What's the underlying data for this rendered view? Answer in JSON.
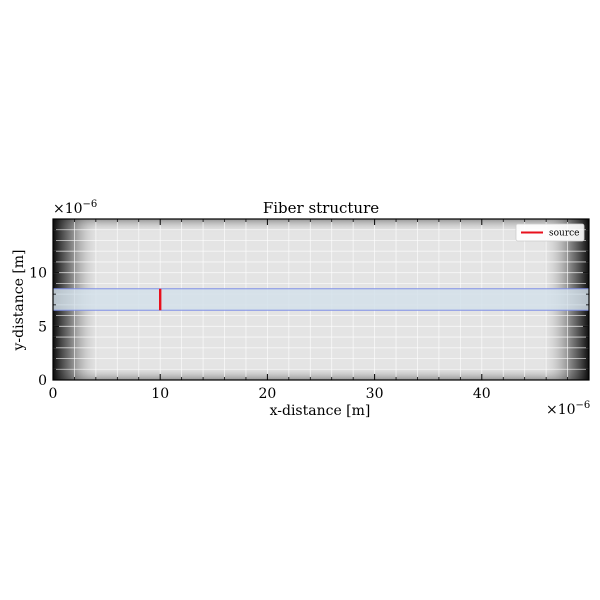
{
  "chart_data": {
    "type": "heatmap",
    "title": "Fiber structure",
    "xlabel": "x-distance [m]",
    "ylabel": "y-distance [m]",
    "x_multiplier": "×10",
    "x_multiplier_exp": "−6",
    "y_multiplier": "×10",
    "y_multiplier_exp": "−6",
    "xlim": [
      0,
      50
    ],
    "ylim": [
      0,
      15
    ],
    "xticks": [
      0,
      10,
      20,
      30,
      40
    ],
    "yticks": [
      0,
      5,
      10
    ],
    "grid": true,
    "background": {
      "colormap": "grayscale",
      "edge_absorption_width": 4.5
    },
    "core": {
      "x": [
        0,
        50
      ],
      "y": [
        6.5,
        8.5
      ],
      "fill": "#d4e1ea",
      "edge": "#7f8fe6"
    },
    "source": {
      "name": "source",
      "x": 10,
      "y": [
        6.5,
        8.5
      ],
      "color": "#e8101c"
    },
    "legend": {
      "placement": "top-right",
      "entries": [
        "source"
      ]
    }
  }
}
